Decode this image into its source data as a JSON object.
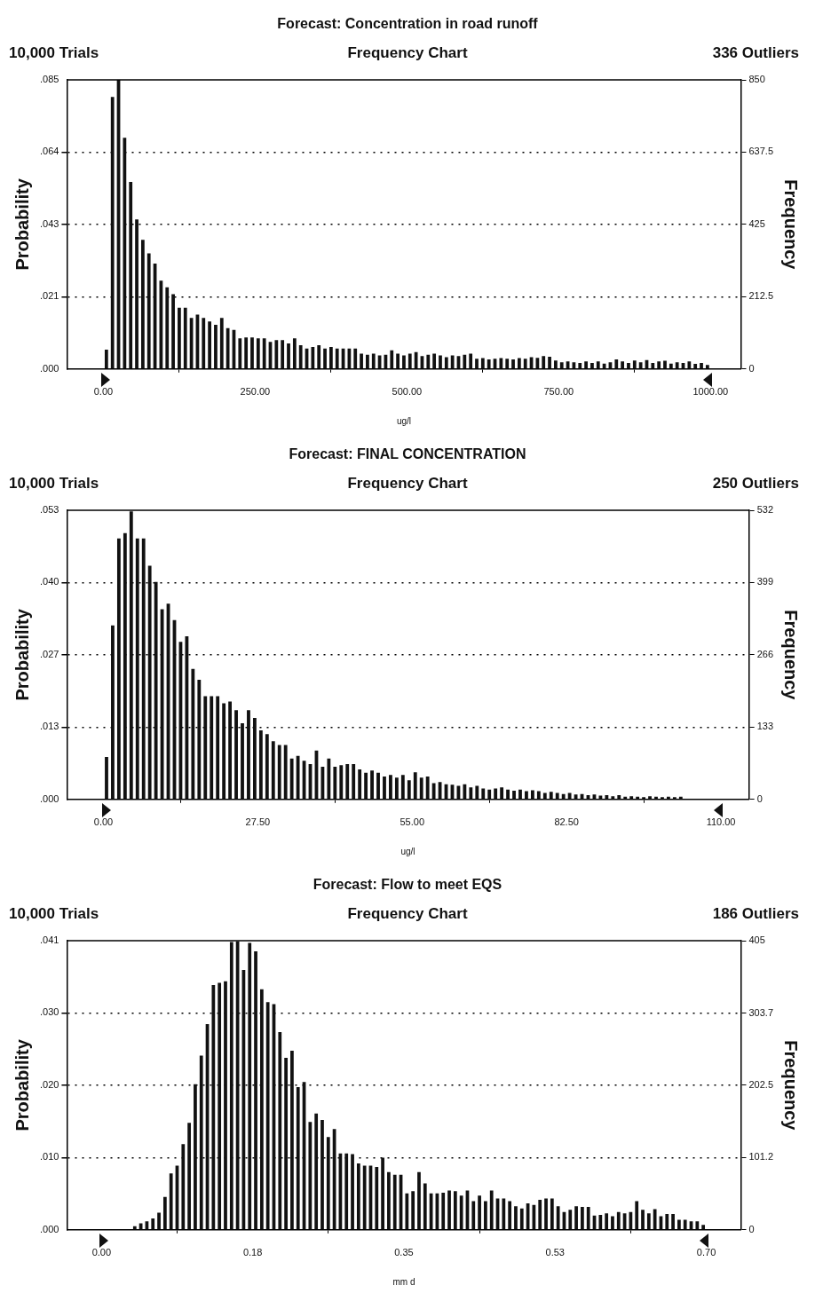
{
  "chart_data": [
    {
      "type": "histogram",
      "title": "Forecast: Concentration in road runoff",
      "subtitle": "Frequency Chart",
      "annotations": [
        "10,000 Trials",
        "336 Outliers"
      ],
      "xlabel": "ug/l",
      "ylabel": "Probability",
      "y2label": "Frequency",
      "color": "#111111",
      "bins": [
        0,
        10,
        20,
        30,
        40,
        50,
        60,
        70,
        80,
        90,
        100,
        110,
        120,
        130,
        140,
        150,
        160,
        170,
        180,
        190,
        200,
        210,
        220,
        230,
        240,
        250,
        260,
        270,
        280,
        290,
        300,
        310,
        320,
        330,
        340,
        350,
        360,
        370,
        380,
        390,
        400,
        410,
        420,
        430,
        440,
        450,
        460,
        470,
        480,
        490,
        500,
        510,
        520,
        530,
        540,
        550,
        560,
        570,
        580,
        590,
        600,
        610,
        620,
        630,
        640,
        650,
        660,
        670,
        680,
        690,
        700,
        710,
        720,
        730,
        740,
        750,
        760,
        770,
        780,
        790,
        800,
        810,
        820,
        830,
        840,
        850,
        860,
        870,
        880,
        890,
        900,
        910,
        920,
        930,
        940,
        950,
        960,
        970,
        980,
        990,
        1000
      ],
      "values": [
        0.0057,
        0.08,
        0.085,
        0.068,
        0.055,
        0.044,
        0.038,
        0.034,
        0.031,
        0.026,
        0.024,
        0.022,
        0.018,
        0.018,
        0.015,
        0.016,
        0.015,
        0.014,
        0.013,
        0.015,
        0.012,
        0.0115,
        0.009,
        0.0093,
        0.0093,
        0.009,
        0.009,
        0.008,
        0.0085,
        0.0085,
        0.0075,
        0.009,
        0.007,
        0.006,
        0.0065,
        0.007,
        0.006,
        0.0065,
        0.006,
        0.006,
        0.006,
        0.006,
        0.0045,
        0.0042,
        0.0045,
        0.004,
        0.0042,
        0.0055,
        0.0045,
        0.004,
        0.0045,
        0.005,
        0.0038,
        0.0042,
        0.0045,
        0.004,
        0.0035,
        0.004,
        0.0038,
        0.0042,
        0.0045,
        0.003,
        0.0032,
        0.0028,
        0.003,
        0.0032,
        0.003,
        0.0028,
        0.0032,
        0.003,
        0.0035,
        0.0033,
        0.0038,
        0.0036,
        0.0025,
        0.002,
        0.0022,
        0.002,
        0.0018,
        0.0022,
        0.0018,
        0.0022,
        0.0016,
        0.002,
        0.0028,
        0.0022,
        0.0018,
        0.0025,
        0.002,
        0.0026,
        0.0018,
        0.0022,
        0.0024,
        0.0016,
        0.002,
        0.0018,
        0.0022,
        0.0015,
        0.0018,
        0.0012
      ],
      "xlim": [
        -60,
        1050
      ],
      "xticks": [
        {
          "value": 0,
          "label": "0.00"
        },
        {
          "value": 250,
          "label": "250.00"
        },
        {
          "value": 500,
          "label": "500.00"
        },
        {
          "value": 750,
          "label": "750.00"
        },
        {
          "value": 1000,
          "label": "1000.00"
        }
      ],
      "ylim": [
        0,
        0.085
      ],
      "yticks": [
        {
          "value": 0,
          "label": ".000"
        },
        {
          "value": 0.02125,
          "label": ".021"
        },
        {
          "value": 0.0425,
          "label": ".043"
        },
        {
          "value": 0.06375,
          "label": ".064"
        },
        {
          "value": 0.085,
          "label": ".085"
        }
      ],
      "y2lim": [
        0,
        850
      ],
      "y2ticks": [
        0,
        212.5,
        425,
        637.5,
        850
      ],
      "grid": "y",
      "legend": false
    },
    {
      "type": "histogram",
      "title": "Forecast: FINAL CONCENTRATION",
      "subtitle": "Frequency Chart",
      "annotations": [
        "10,000 Trials",
        "250 Outliers"
      ],
      "xlabel": "ug/l",
      "ylabel": "Probability",
      "y2label": "Frequency",
      "color": "#111111",
      "bins": [
        0,
        1.1,
        2.2,
        3.3,
        4.4,
        5.5,
        6.6,
        7.7,
        8.8,
        9.9,
        11,
        12.1,
        13.2,
        14.3,
        15.4,
        16.5,
        17.6,
        18.7,
        19.8,
        20.9,
        22,
        23.1,
        24.2,
        25.3,
        26.4,
        27.5,
        28.6,
        29.7,
        30.8,
        31.9,
        33,
        34.1,
        35.2,
        36.3,
        37.4,
        38.5,
        39.6,
        40.7,
        41.8,
        42.9,
        44,
        45.1,
        46.2,
        47.3,
        48.4,
        49.5,
        50.6,
        51.7,
        52.8,
        53.9,
        55,
        56.1,
        57.2,
        58.3,
        59.4,
        60.5,
        61.6,
        62.7,
        63.8,
        64.9,
        66,
        67.1,
        68.2,
        69.3,
        70.4,
        71.5,
        72.6,
        73.7,
        74.8,
        75.9,
        77,
        78.1,
        79.2,
        80.3,
        81.4,
        82.5,
        83.6,
        84.7,
        85.8,
        86.9,
        88,
        89.1,
        90.2,
        91.3,
        92.4,
        93.5,
        94.6,
        95.7,
        96.8,
        97.9,
        99,
        100.1,
        101.2,
        102.3,
        103.4
      ],
      "values": [
        0.0078,
        0.032,
        0.048,
        0.049,
        0.053,
        0.048,
        0.048,
        0.043,
        0.04,
        0.035,
        0.036,
        0.033,
        0.029,
        0.03,
        0.024,
        0.022,
        0.019,
        0.019,
        0.019,
        0.0177,
        0.018,
        0.0164,
        0.014,
        0.0164,
        0.015,
        0.0127,
        0.012,
        0.0107,
        0.01,
        0.01,
        0.0075,
        0.008,
        0.0071,
        0.0065,
        0.009,
        0.006,
        0.0075,
        0.006,
        0.0063,
        0.0065,
        0.0065,
        0.0055,
        0.0049,
        0.0053,
        0.0049,
        0.0042,
        0.0045,
        0.004,
        0.0045,
        0.0035,
        0.005,
        0.004,
        0.0042,
        0.003,
        0.0032,
        0.0028,
        0.0027,
        0.0025,
        0.0028,
        0.0022,
        0.0025,
        0.002,
        0.0018,
        0.002,
        0.0022,
        0.0018,
        0.0016,
        0.0018,
        0.0015,
        0.0017,
        0.0015,
        0.0012,
        0.0014,
        0.0012,
        0.001,
        0.0012,
        0.0009,
        0.001,
        0.0008,
        0.0009,
        0.0007,
        0.0008,
        0.0006,
        0.0008,
        0.0005,
        0.0006,
        0.0005,
        0.0004,
        0.0006,
        0.0005,
        0.0004,
        0.0005,
        0.0004,
        0.0005
      ],
      "xlim": [
        -6.5,
        115
      ],
      "xticks": [
        {
          "value": 0,
          "label": "0.00"
        },
        {
          "value": 27.5,
          "label": "27.50"
        },
        {
          "value": 55,
          "label": "55.00"
        },
        {
          "value": 82.5,
          "label": "82.50"
        },
        {
          "value": 110,
          "label": "110.00"
        }
      ],
      "ylim": [
        0,
        0.0532
      ],
      "yticks": [
        {
          "value": 0,
          "label": ".000"
        },
        {
          "value": 0.0133,
          "label": ".013"
        },
        {
          "value": 0.0266,
          "label": ".027"
        },
        {
          "value": 0.0399,
          "label": ".040"
        },
        {
          "value": 0.0532,
          "label": ".053"
        }
      ],
      "y2lim": [
        0,
        532
      ],
      "y2ticks": [
        0,
        133,
        266,
        399,
        532
      ],
      "grid": "y",
      "legend": false
    },
    {
      "type": "histogram",
      "title": "Forecast: Flow to meet EQS",
      "subtitle": "Frequency Chart",
      "annotations": [
        "10,000 Trials",
        "186 Outliers"
      ],
      "xlabel": "mm d",
      "ylabel": "Probability",
      "y2label": "Frequency",
      "color": "#111111",
      "bins": [
        0,
        0.007,
        0.014,
        0.021,
        0.028,
        0.035,
        0.042,
        0.049,
        0.056,
        0.063,
        0.07,
        0.077,
        0.084,
        0.091,
        0.098,
        0.105,
        0.112,
        0.119,
        0.126,
        0.133,
        0.14,
        0.147,
        0.154,
        0.161,
        0.168,
        0.175,
        0.182,
        0.189,
        0.196,
        0.203,
        0.21,
        0.217,
        0.224,
        0.231,
        0.238,
        0.245,
        0.252,
        0.259,
        0.266,
        0.273,
        0.28,
        0.287,
        0.294,
        0.301,
        0.308,
        0.315,
        0.322,
        0.329,
        0.336,
        0.343,
        0.35,
        0.357,
        0.364,
        0.371,
        0.378,
        0.385,
        0.392,
        0.399,
        0.406,
        0.413,
        0.42,
        0.427,
        0.434,
        0.441,
        0.448,
        0.455,
        0.462,
        0.469,
        0.476,
        0.483,
        0.49,
        0.497,
        0.504,
        0.511,
        0.518,
        0.525,
        0.532,
        0.539,
        0.546,
        0.553,
        0.56,
        0.567,
        0.574,
        0.581,
        0.588,
        0.595,
        0.602,
        0.609,
        0.616,
        0.623,
        0.63,
        0.637,
        0.644,
        0.651,
        0.658,
        0.665,
        0.672,
        0.679,
        0.686,
        0.693,
        0.7
      ],
      "values": [
        0,
        0,
        0,
        0,
        0,
        0.0005,
        0.0009,
        0.0012,
        0.0016,
        0.0024,
        0.0046,
        0.0079,
        0.009,
        0.012,
        0.015,
        0.0204,
        0.0244,
        0.0288,
        0.0343,
        0.0346,
        0.0348,
        0.0403,
        0.0404,
        0.0364,
        0.0402,
        0.039,
        0.0337,
        0.0319,
        0.0316,
        0.0277,
        0.0241,
        0.0251,
        0.02,
        0.0207,
        0.0151,
        0.0163,
        0.0154,
        0.013,
        0.0141,
        0.0107,
        0.0107,
        0.0106,
        0.0093,
        0.009,
        0.009,
        0.0088,
        0.0101,
        0.0081,
        0.0077,
        0.0077,
        0.0051,
        0.0054,
        0.0081,
        0.0065,
        0.0051,
        0.0051,
        0.0052,
        0.0055,
        0.0054,
        0.0048,
        0.0055,
        0.004,
        0.0048,
        0.004,
        0.0055,
        0.0044,
        0.0044,
        0.004,
        0.0033,
        0.003,
        0.0037,
        0.0035,
        0.0042,
        0.0044,
        0.0044,
        0.0033,
        0.0025,
        0.0028,
        0.0033,
        0.0032,
        0.0032,
        0.002,
        0.0021,
        0.0023,
        0.0019,
        0.0025,
        0.0023,
        0.0025,
        0.004,
        0.0028,
        0.0023,
        0.0029,
        0.0019,
        0.0022,
        0.0022,
        0.0014,
        0.0014,
        0.0012,
        0.0012,
        0.0007
      ],
      "xlim": [
        -0.04,
        0.74
      ],
      "xticks": [
        {
          "value": 0,
          "label": "0.00"
        },
        {
          "value": 0.175,
          "label": "0.18"
        },
        {
          "value": 0.35,
          "label": "0.35"
        },
        {
          "value": 0.525,
          "label": "0.53"
        },
        {
          "value": 0.7,
          "label": "0.70"
        }
      ],
      "ylim": [
        0,
        0.0405
      ],
      "yticks": [
        {
          "value": 0,
          "label": ".000"
        },
        {
          "value": 0.010125,
          "label": ".010"
        },
        {
          "value": 0.02025,
          "label": ".020"
        },
        {
          "value": 0.030375,
          "label": ".030"
        },
        {
          "value": 0.0405,
          "label": ".041"
        }
      ],
      "y2lim": [
        0,
        405
      ],
      "y2ticks": [
        0,
        101.2,
        202.5,
        303.7,
        405
      ],
      "grid": "y",
      "legend": false
    }
  ]
}
